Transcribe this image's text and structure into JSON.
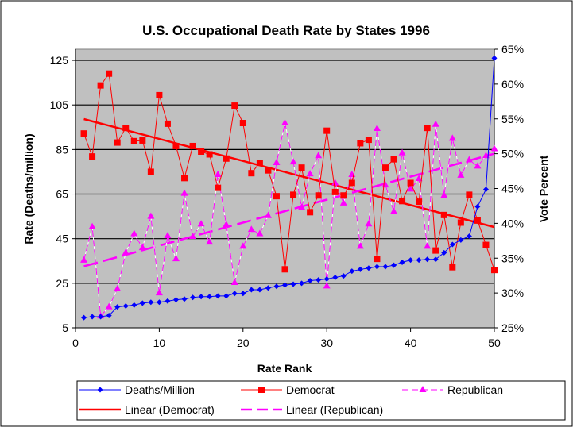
{
  "chart_data": {
    "type": "line",
    "title": "U.S. Occupational Death Rate by States 1996",
    "xlabel": "Rate Rank",
    "ylabel": "Rate (Deaths/million)",
    "y2label": "Vote Percent",
    "xlim": [
      0,
      50
    ],
    "ylim": [
      5,
      130
    ],
    "y2lim": [
      25,
      65
    ],
    "xticks": [
      "0",
      "10",
      "20",
      "30",
      "40",
      "50"
    ],
    "yticks": [
      "5",
      "25",
      "45",
      "65",
      "85",
      "105",
      "125"
    ],
    "y2ticks": [
      "25%",
      "30%",
      "35%",
      "40%",
      "45%",
      "50%",
      "55%",
      "60%",
      "65%"
    ],
    "grid": "horizontal",
    "legend_position": "bottom",
    "x": [
      1,
      2,
      3,
      4,
      5,
      6,
      7,
      8,
      9,
      10,
      11,
      12,
      13,
      14,
      15,
      16,
      17,
      18,
      19,
      20,
      21,
      22,
      23,
      24,
      25,
      26,
      27,
      28,
      29,
      30,
      31,
      32,
      33,
      34,
      35,
      36,
      37,
      38,
      39,
      40,
      41,
      42,
      43,
      44,
      45,
      46,
      47,
      48,
      49,
      50
    ],
    "series": [
      {
        "name": "Deaths/Million",
        "axis": "left",
        "color": "#0000ff",
        "marker": "diamond",
        "values": [
          9.6,
          10,
          10,
          10.5,
          14.4,
          14.8,
          15.2,
          16.1,
          16.5,
          16.5,
          17,
          17.6,
          17.9,
          18.6,
          19,
          19,
          19.3,
          19.3,
          20.4,
          20.4,
          22.1,
          22.1,
          22.9,
          23.6,
          24.2,
          24.6,
          25,
          26.2,
          26.5,
          26.9,
          27.6,
          28.3,
          30.4,
          31.2,
          31.8,
          32.4,
          32.4,
          33.1,
          34.4,
          35.4,
          35.4,
          35.7,
          35.7,
          38.7,
          42.4,
          44.4,
          46.1,
          59.4,
          67.1,
          126
        ]
      },
      {
        "name": "Democrat",
        "axis": "right",
        "color": "#ff0000",
        "marker": "square",
        "values": [
          52.9,
          49.6,
          59.8,
          61.5,
          51.6,
          53.7,
          51.8,
          51.9,
          47.4,
          58.4,
          54.3,
          51.1,
          46.5,
          51.1,
          50.3,
          49.9,
          45.1,
          49.3,
          56.9,
          54.4,
          47.2,
          48.7,
          47.6,
          43.9,
          33.4,
          44.1,
          48.0,
          41.6,
          44.0,
          53.3,
          44.5,
          44.0,
          45.8,
          51.5,
          52.0,
          34.9,
          48.0,
          49.2,
          43.2,
          45.8,
          43.1,
          53.7,
          36.1,
          41.2,
          33.7,
          40.1,
          44.1,
          40.4,
          36.9,
          33.3
        ]
      },
      {
        "name": "Republican",
        "axis": "right",
        "color": "#ff00ff",
        "marker": "triangle",
        "values": [
          34.7,
          39.5,
          26.7,
          28.0,
          30.6,
          35.8,
          38.5,
          36.5,
          41.0,
          30.0,
          38.2,
          34.9,
          44.3,
          38.1,
          39.9,
          37.3,
          47.0,
          39.8,
          31.5,
          36.7,
          39.1,
          38.5,
          41.1,
          48.7,
          54.4,
          48.8,
          42.3,
          47.1,
          49.7,
          31.0,
          45.8,
          42.9,
          47.0,
          36.7,
          39.9,
          53.6,
          45.5,
          41.7,
          50.1,
          44.9,
          46.4,
          36.7,
          54.2,
          44.0,
          52.2,
          46.9,
          49.1,
          48.2,
          49.7,
          50.7
        ]
      }
    ],
    "trendlines": [
      {
        "name": "Linear (Democrat)",
        "of": "Democrat",
        "type": "linear",
        "color": "#ff0000",
        "style": "solid"
      },
      {
        "name": "Linear (Republican)",
        "of": "Republican",
        "type": "linear",
        "color": "#ff00ff",
        "style": "dashed"
      }
    ]
  }
}
